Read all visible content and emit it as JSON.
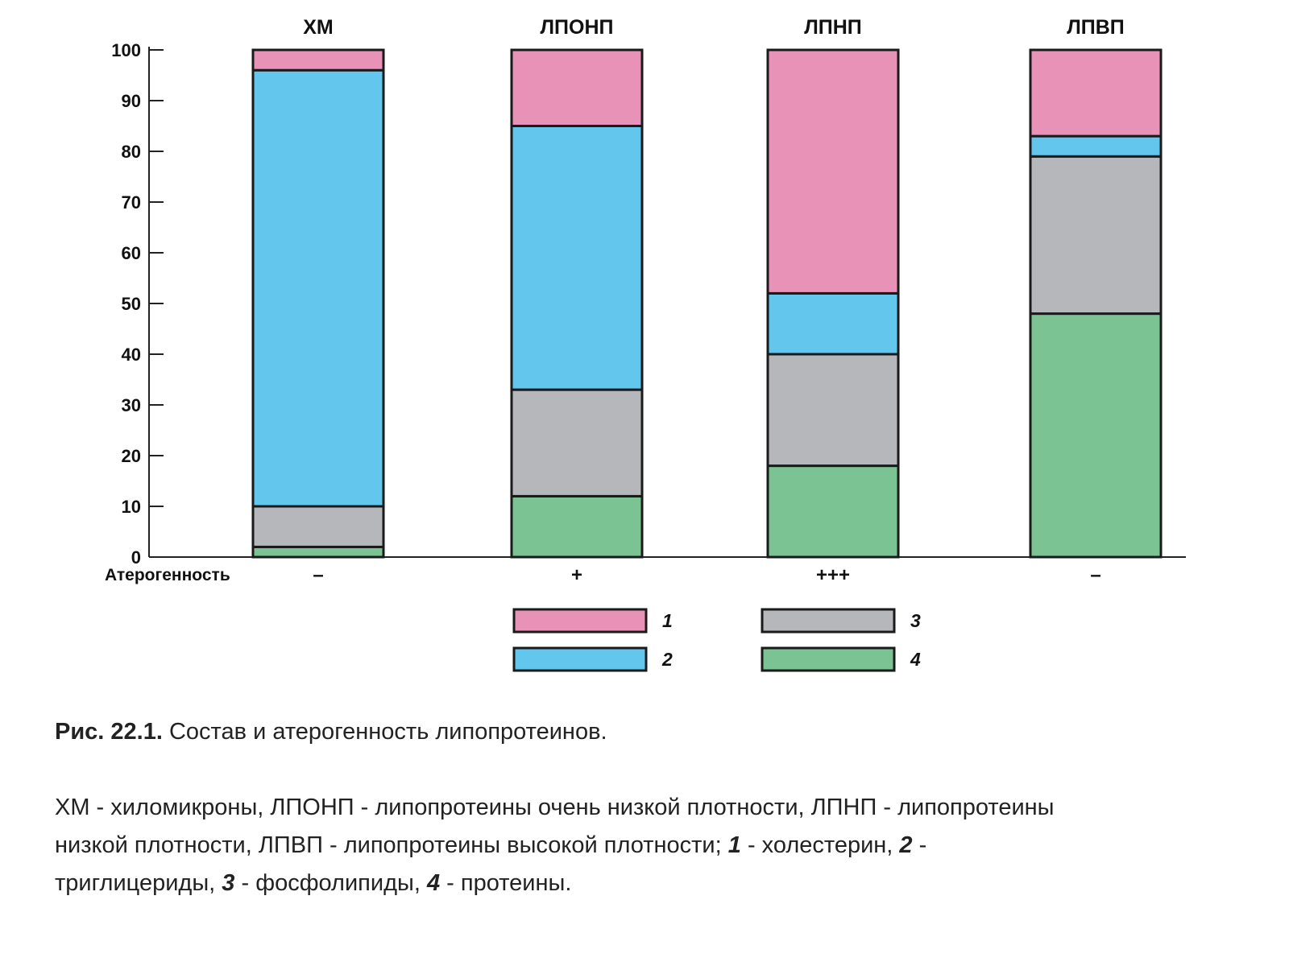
{
  "chart_data": {
    "type": "bar",
    "stacked": true,
    "categories": [
      "ХМ",
      "ЛПОНП",
      "ЛПНП",
      "ЛПВП"
    ],
    "ylim": [
      0,
      100
    ],
    "yticks": [
      0,
      10,
      20,
      30,
      40,
      50,
      60,
      70,
      80,
      90,
      100
    ],
    "grid": false,
    "legend_position": "bottom-center",
    "series": [
      {
        "name": "1",
        "color": "#e992b7",
        "values": [
          4,
          15,
          48,
          17
        ]
      },
      {
        "name": "2",
        "color": "#62c6ed",
        "values": [
          86,
          52,
          12,
          4
        ]
      },
      {
        "name": "3",
        "color": "#b5b7ba",
        "values": [
          8,
          21,
          22,
          31
        ]
      },
      {
        "name": "4",
        "color": "#7cc393",
        "values": [
          2,
          12,
          18,
          48
        ]
      }
    ],
    "stack_order_bottom_to_top": [
      "4",
      "3",
      "2",
      "1"
    ],
    "atherogenicity_label": "Атерогенность",
    "atherogenicity": [
      "–",
      "+",
      "+++",
      "–"
    ]
  },
  "caption": {
    "label": "Рис. 22.1.",
    "text": " Состав и атерогенность липопротеинов."
  },
  "notes": {
    "line1": "ХМ - хиломикроны, ЛПОНП - липопротеины очень низкой плотности, ЛПНП - липопротеины",
    "line2_a": "низкой плотности, ЛПВП - липопротеины высокой плотности; ",
    "line2_n1": "1",
    "line2_b": " - холестерин, ",
    "line2_n2": "2",
    "line2_c": " -",
    "line3_a": "триглицериды, ",
    "line3_n3": "3",
    "line3_b": " - фосфолипиды, ",
    "line3_n4": "4",
    "line3_c": " - протеины."
  }
}
